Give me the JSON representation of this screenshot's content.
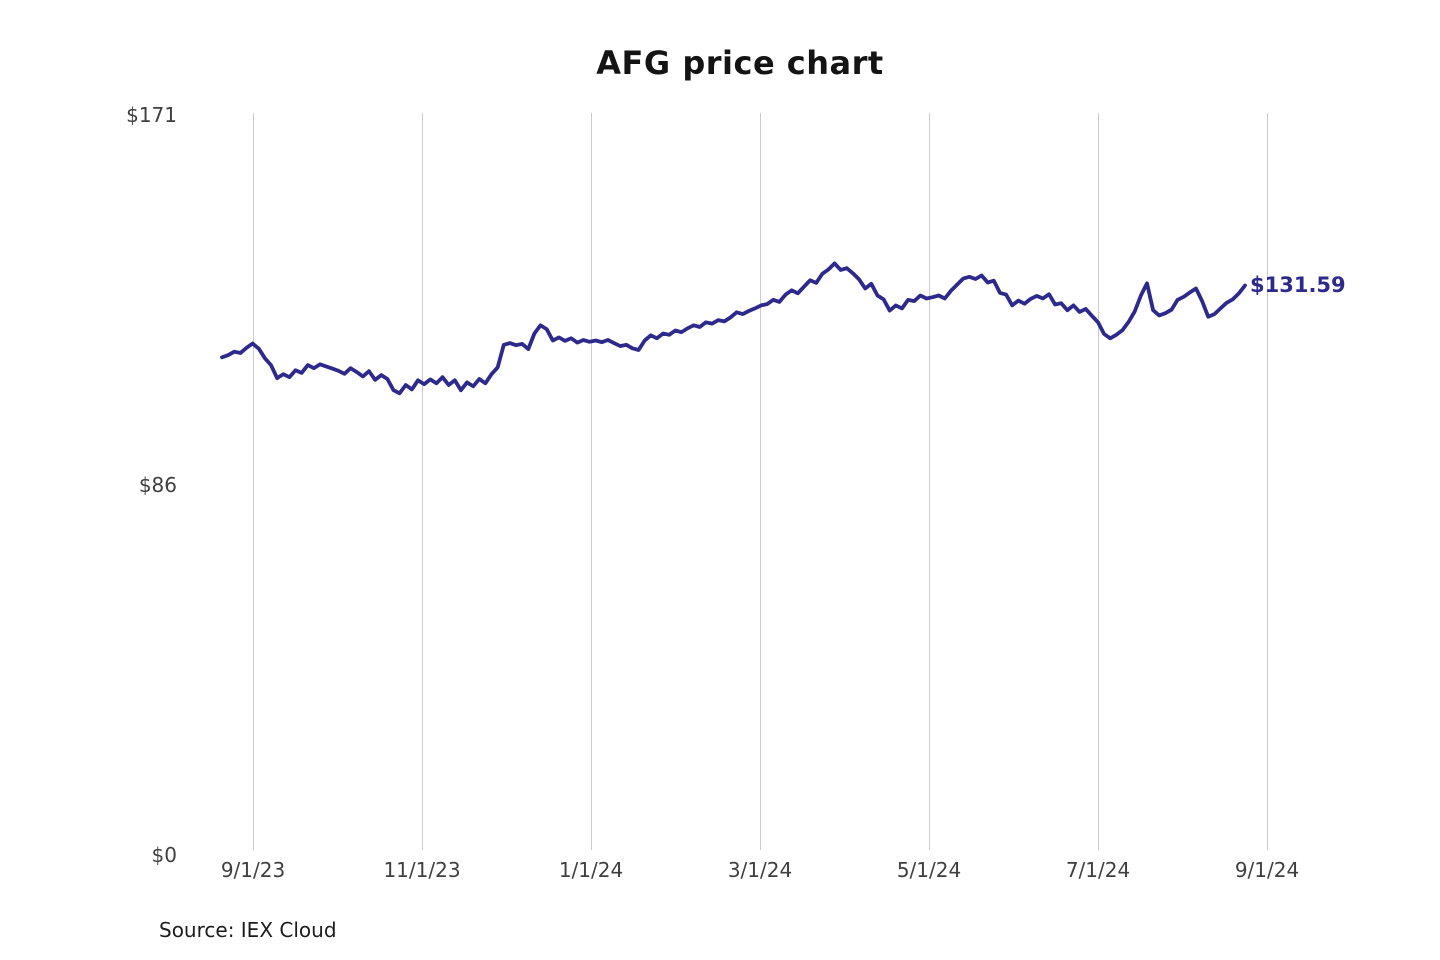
{
  "title": "AFG price chart",
  "source": "Source: IEX Cloud",
  "colors": {
    "background": "#ffffff",
    "line": "#2d2a8c",
    "grid": "#cccccc",
    "axis_label": "#3f3f3f",
    "title": "#141414",
    "end_label": "#2d2a8c",
    "source": "#1c1c1c"
  },
  "chart_data": {
    "type": "line",
    "title": "AFG price chart",
    "series_name": "AFG price",
    "xlabel": "",
    "ylabel": "",
    "legend": "none",
    "grid": "vertical-only",
    "ylim": [
      0,
      171
    ],
    "y_tick_labels": [
      "$171",
      "$86",
      "$0"
    ],
    "y_tick_values": [
      171,
      86,
      0
    ],
    "x_tick_labels": [
      "9/1/23",
      "11/1/23",
      "1/1/24",
      "3/1/24",
      "5/1/24",
      "7/1/24",
      "9/1/24"
    ],
    "annotation_last_price": "$131.59",
    "last_price": 131.59,
    "prices": [
      115.0,
      115.5,
      116.3,
      116.0,
      117.2,
      118.2,
      117.0,
      114.8,
      113.2,
      110.2,
      111.1,
      110.4,
      112.0,
      111.4,
      113.2,
      112.5,
      113.4,
      112.9,
      112.4,
      111.9,
      111.2,
      112.5,
      111.6,
      110.6,
      111.8,
      109.8,
      110.9,
      110.0,
      107.4,
      106.7,
      108.6,
      107.6,
      109.7,
      108.8,
      109.9,
      109.0,
      110.4,
      108.6,
      109.7,
      107.4,
      109.2,
      108.3,
      110.0,
      109.0,
      111.1,
      112.7,
      117.9,
      118.3,
      117.8,
      118.1,
      116.9,
      120.5,
      122.4,
      121.5,
      118.9,
      119.6,
      118.8,
      119.4,
      118.4,
      119.0,
      118.6,
      118.9,
      118.5,
      119.0,
      118.3,
      117.6,
      117.9,
      117.1,
      116.7,
      118.9,
      120.1,
      119.4,
      120.5,
      120.2,
      121.2,
      120.8,
      121.7,
      122.4,
      122.0,
      123.1,
      122.8,
      123.6,
      123.3,
      124.2,
      125.4,
      125.0,
      125.7,
      126.3,
      127.0,
      127.3,
      128.3,
      127.8,
      129.5,
      130.5,
      129.8,
      131.3,
      132.8,
      132.2,
      134.3,
      135.3,
      136.7,
      135.2,
      135.6,
      134.4,
      133.0,
      130.9,
      132.0,
      129.3,
      128.4,
      125.8,
      127.0,
      126.3,
      128.3,
      128.0,
      129.3,
      128.6,
      128.9,
      129.3,
      128.6,
      130.4,
      131.8,
      133.2,
      133.6,
      133.1,
      133.9,
      132.3,
      132.7,
      129.9,
      129.5,
      127.0,
      128.1,
      127.4,
      128.5,
      129.2,
      128.6,
      129.6,
      127.2,
      127.5,
      125.9,
      127.0,
      125.5,
      126.2,
      124.6,
      123.1,
      120.4,
      119.4,
      120.2,
      121.3,
      123.2,
      125.6,
      129.3,
      132.1,
      125.9,
      124.7,
      125.2,
      126.0,
      128.3,
      129.0,
      130.0,
      130.9,
      128.0,
      124.4,
      125.0,
      126.3,
      127.6,
      128.4,
      129.8,
      131.59
    ]
  }
}
